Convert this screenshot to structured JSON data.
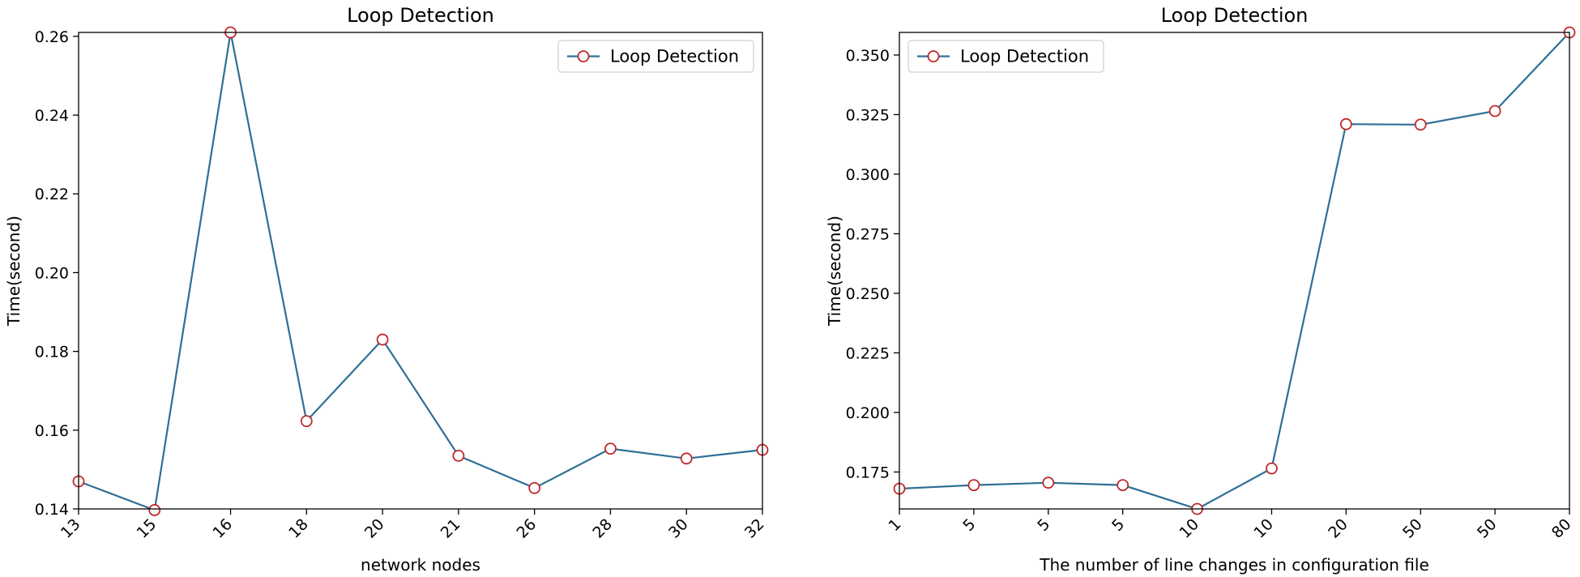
{
  "colors": {
    "line": "#2e6f97",
    "marker_edge": "#c0282a",
    "marker_face": "#ffffff"
  },
  "chart_data": [
    {
      "type": "line",
      "title": "Loop Detection",
      "xlabel": "network nodes",
      "ylabel": "Time(second)",
      "categories": [
        "13",
        "15",
        "16",
        "18",
        "20",
        "21",
        "26",
        "28",
        "30",
        "32"
      ],
      "series": [
        {
          "name": "Loop Detection",
          "values": [
            0.147,
            0.1397,
            0.261,
            0.1623,
            0.183,
            0.1535,
            0.1453,
            0.1553,
            0.1528,
            0.155
          ]
        }
      ],
      "ylim": [
        0.14,
        0.261
      ],
      "yticks": [
        0.14,
        0.16,
        0.18,
        0.2,
        0.22,
        0.24,
        0.26
      ],
      "ytick_labels": [
        "0.14",
        "0.16",
        "0.18",
        "0.20",
        "0.22",
        "0.24",
        "0.26"
      ],
      "legend": "top-right",
      "grid": false
    },
    {
      "type": "line",
      "title": "Loop Detection",
      "xlabel": "The number of line changes in configuration file",
      "ylabel": "Time(second)",
      "categories": [
        "1",
        "5",
        "5",
        "5",
        "10",
        "10",
        "20",
        "50",
        "50",
        "80"
      ],
      "series": [
        {
          "name": "Loop Detection",
          "values": [
            0.168,
            0.1695,
            0.1705,
            0.1695,
            0.1595,
            0.1765,
            0.321,
            0.3208,
            0.3265,
            0.3595
          ]
        }
      ],
      "ylim": [
        0.1595,
        0.3595
      ],
      "yticks": [
        0.175,
        0.2,
        0.225,
        0.25,
        0.275,
        0.3,
        0.325,
        0.35
      ],
      "ytick_labels": [
        "0.175",
        "0.200",
        "0.225",
        "0.250",
        "0.275",
        "0.300",
        "0.325",
        "0.350"
      ],
      "legend": "top-left",
      "grid": false
    }
  ]
}
